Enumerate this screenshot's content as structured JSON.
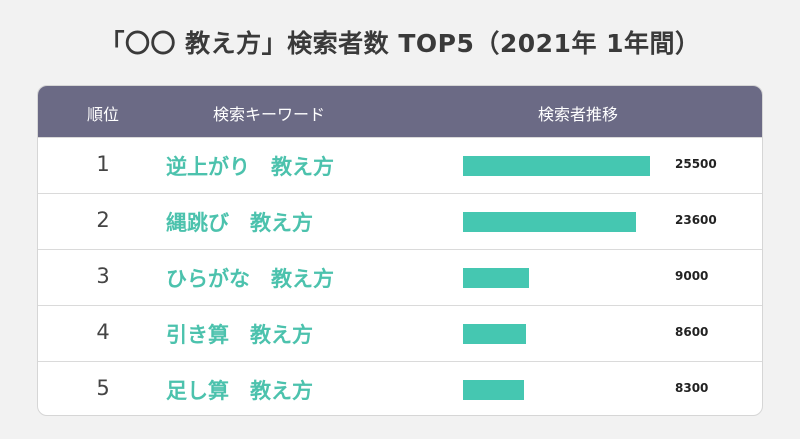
{
  "title": "「〇〇 教え方」検索者数 TOP5（2021年 1年間）",
  "header": {
    "rank": "順位",
    "keyword": "検索キーワード",
    "trend": "検索者推移"
  },
  "colors": {
    "header_bg": "#6b6a85",
    "bar": "#45c7b1",
    "keyword_text": "#4cc2ad"
  },
  "chart_data": {
    "type": "bar",
    "title": "「〇〇 教え方」検索者数 TOP5（2021年 1年間）",
    "categories": [
      "逆上がり　教え方",
      "縄跳び　教え方",
      "ひらがな　教え方",
      "引き算　教え方",
      "足し算　教え方"
    ],
    "ranks": [
      "1",
      "2",
      "3",
      "4",
      "5"
    ],
    "values": [
      25500,
      23600,
      9000,
      8600,
      8300
    ],
    "orientation": "horizontal",
    "xlim": [
      0,
      25500
    ],
    "grid": false
  }
}
